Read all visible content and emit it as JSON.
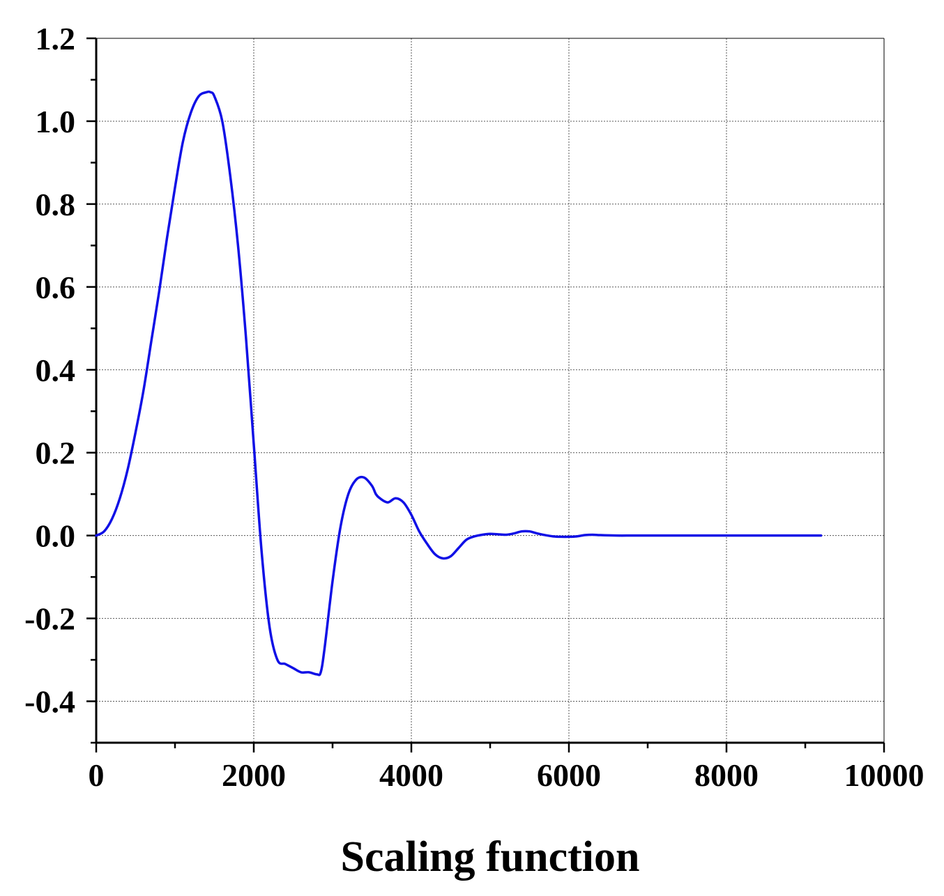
{
  "chart_data": {
    "type": "line",
    "title": "",
    "xlabel": "Scaling function",
    "ylabel": "",
    "xlim": [
      0,
      10000
    ],
    "ylim": [
      -0.5,
      1.2
    ],
    "grid": true,
    "legend": "none",
    "x_ticks": [
      0,
      2000,
      4000,
      6000,
      8000,
      10000
    ],
    "x_tick_labels": [
      "0",
      "2000",
      "4000",
      "6000",
      "8000",
      "10000"
    ],
    "y_ticks": [
      -0.4,
      -0.2,
      0.0,
      0.2,
      0.4,
      0.6,
      0.8,
      1.0,
      1.2
    ],
    "y_tick_labels": [
      "-0.4",
      "-0.2",
      "0.0",
      "0.2",
      "0.4",
      "0.6",
      "0.8",
      "1.0",
      "1.2"
    ],
    "line_color": "#1010e6",
    "series": [
      {
        "x": [
          0,
          100,
          200,
          300,
          400,
          500,
          600,
          700,
          800,
          900,
          1000,
          1100,
          1200,
          1300,
          1400,
          1450,
          1500,
          1600,
          1700,
          1800,
          1900,
          2000,
          2100,
          2200,
          2300,
          2400,
          2500,
          2600,
          2700,
          2800,
          2850,
          2900,
          3000,
          3100,
          3200,
          3300,
          3400,
          3500,
          3550,
          3600,
          3700,
          3800,
          3900,
          4000,
          4100,
          4200,
          4300,
          4400,
          4500,
          4600,
          4700,
          4800,
          4900,
          5000,
          5100,
          5200,
          5300,
          5400,
          5500,
          5600,
          5700,
          5800,
          5900,
          6000,
          6100,
          6200,
          6300,
          6400,
          6600,
          6800,
          7000,
          7500,
          8000,
          8500,
          9000,
          9200
        ],
        "y": [
          0.0,
          0.01,
          0.04,
          0.09,
          0.16,
          0.25,
          0.35,
          0.47,
          0.59,
          0.72,
          0.84,
          0.95,
          1.02,
          1.06,
          1.07,
          1.07,
          1.06,
          1.0,
          0.87,
          0.7,
          0.48,
          0.22,
          -0.04,
          -0.22,
          -0.3,
          -0.31,
          -0.32,
          -0.33,
          -0.33,
          -0.335,
          -0.33,
          -0.27,
          -0.11,
          0.02,
          0.1,
          0.135,
          0.14,
          0.12,
          0.1,
          0.09,
          0.08,
          0.09,
          0.08,
          0.05,
          0.01,
          -0.02,
          -0.045,
          -0.055,
          -0.05,
          -0.03,
          -0.01,
          -0.002,
          0.002,
          0.004,
          0.003,
          0.002,
          0.005,
          0.01,
          0.01,
          0.005,
          0.001,
          -0.002,
          -0.003,
          -0.003,
          -0.002,
          0.001,
          0.002,
          0.001,
          0.0,
          0.0,
          0.0,
          0.0,
          0.0,
          0.0,
          0.0,
          0.0
        ]
      }
    ]
  }
}
